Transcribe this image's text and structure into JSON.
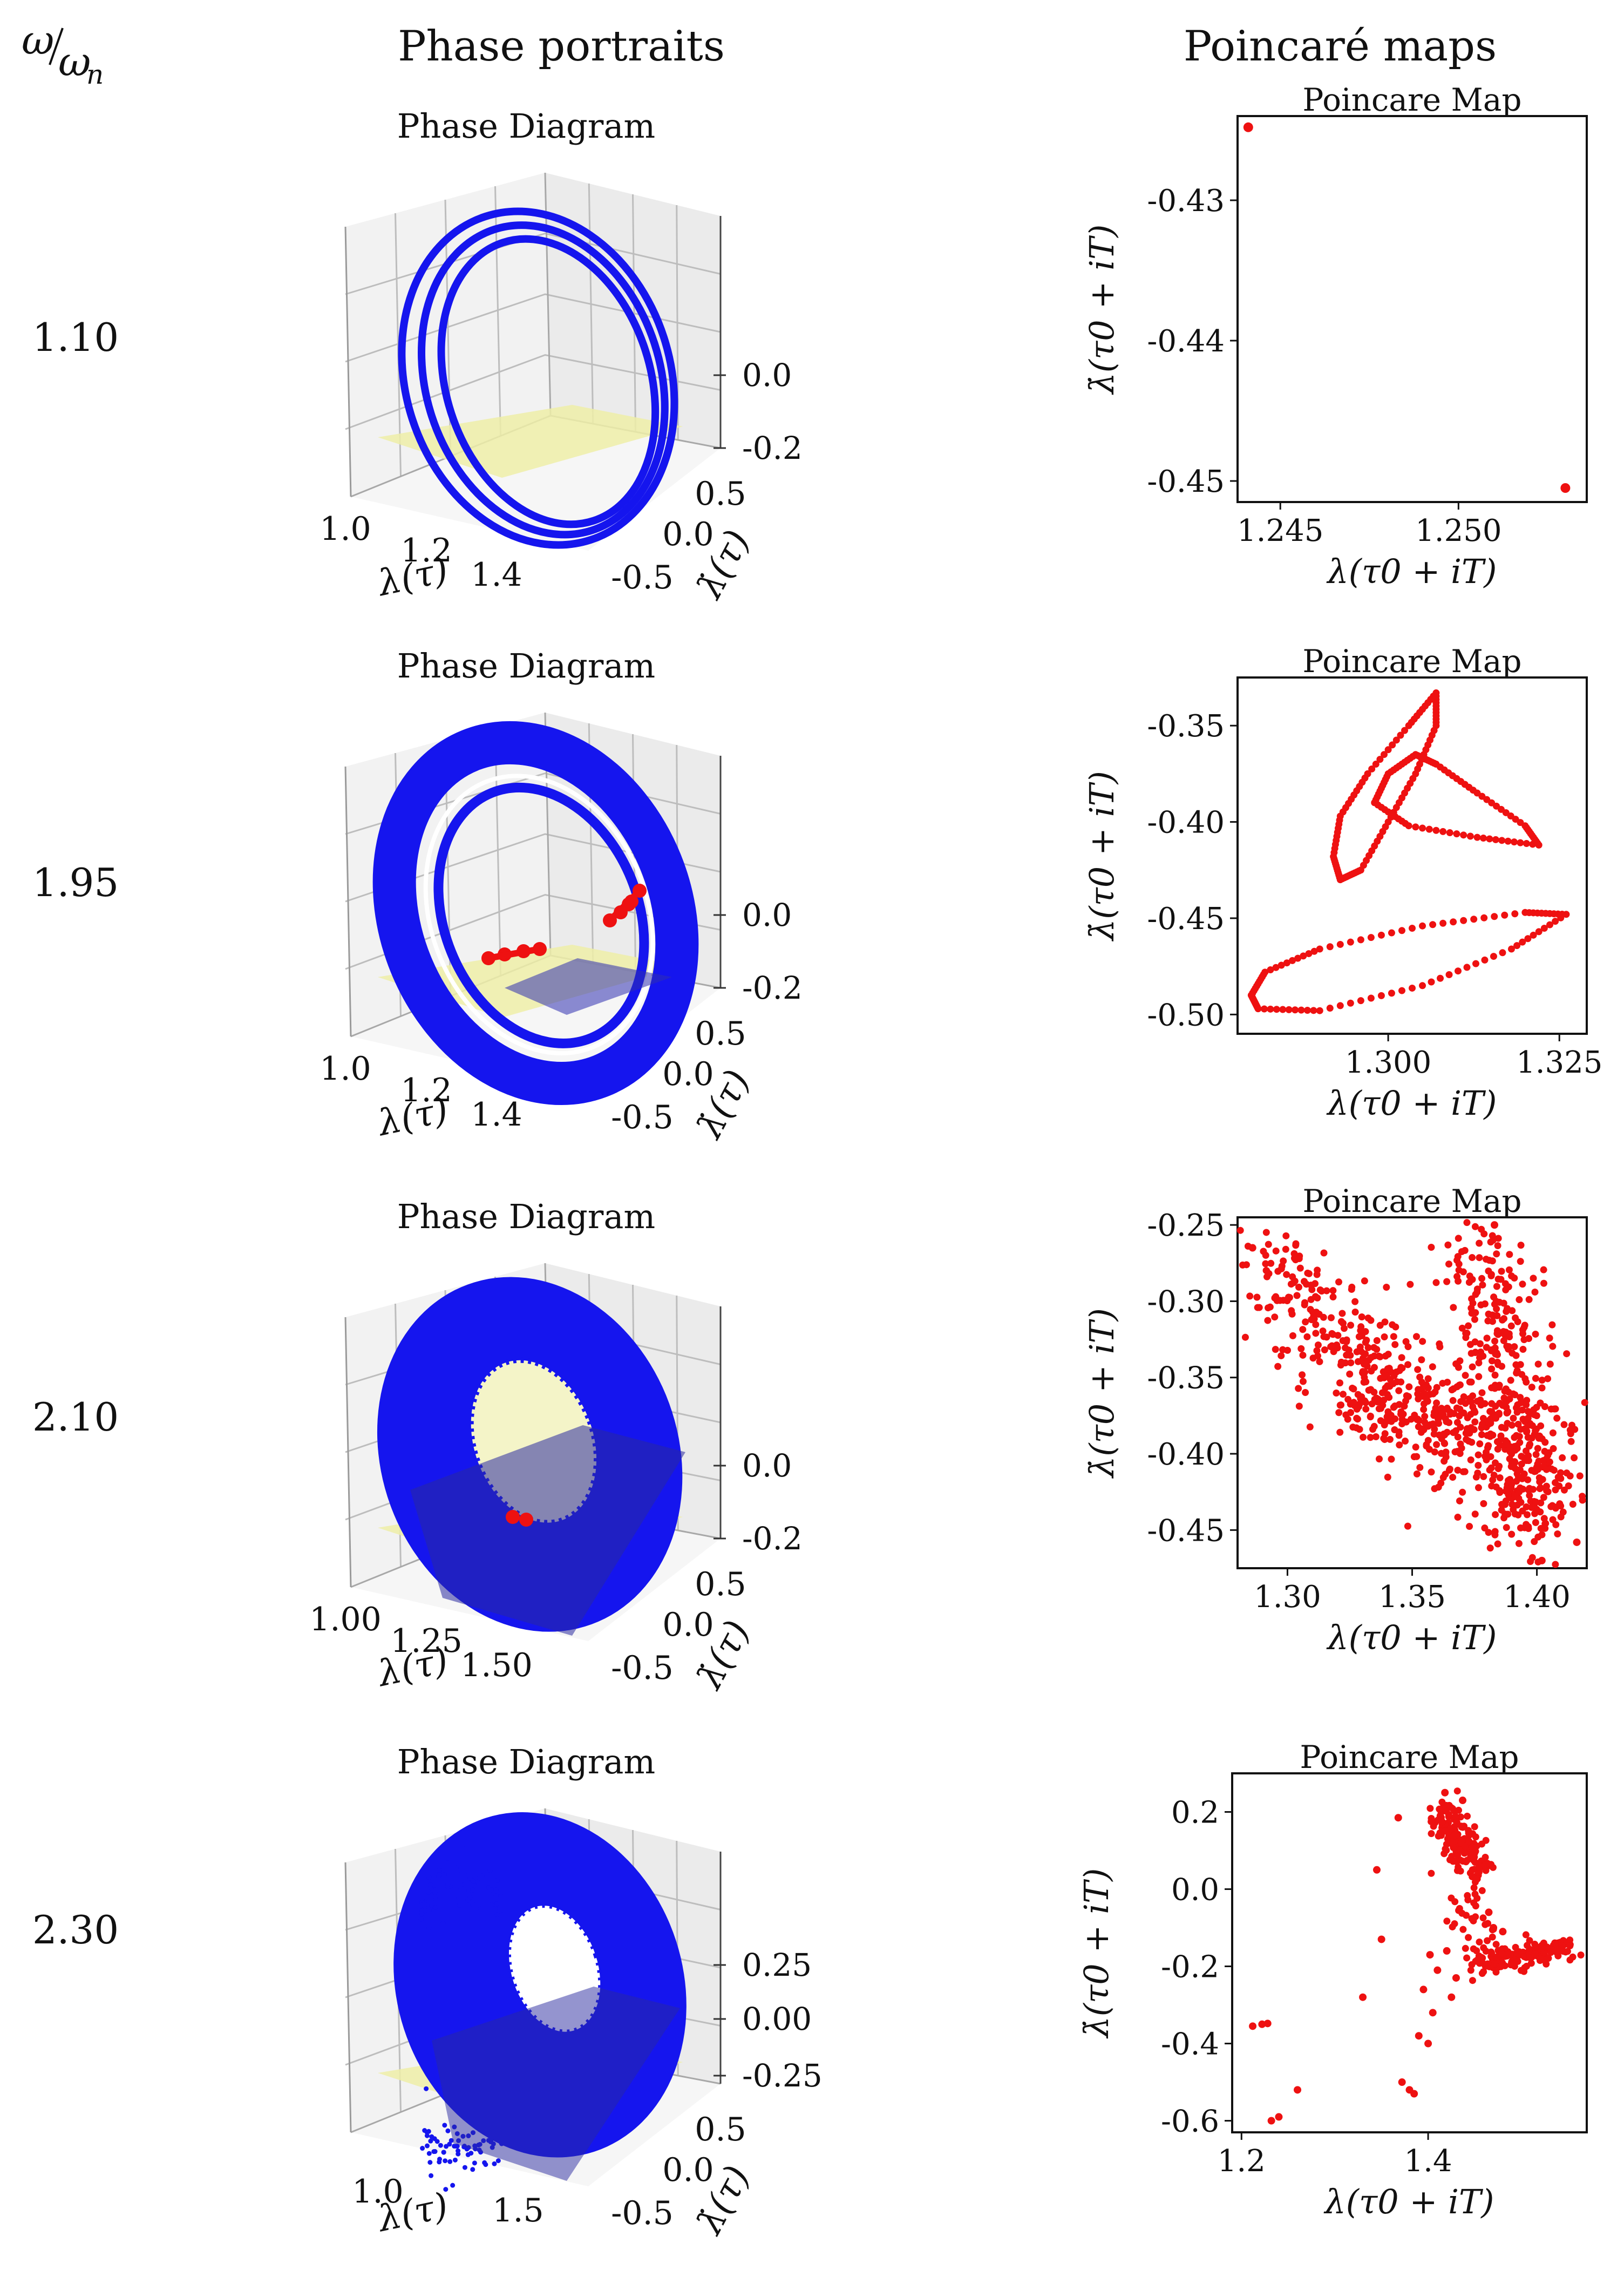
{
  "header": {
    "ratio_label": "ω/ωn",
    "ratio_num": "ω",
    "ratio_den": "ω",
    "ratio_den_sub": "n",
    "col_phase": "Phase portraits",
    "col_poincare": "Poincaré maps"
  },
  "colors": {
    "trajectory": "#1515ee",
    "poincare": "#ee1111",
    "plane": "#efefa8",
    "axis": "#111111",
    "grid": "#bdbdbd",
    "pane": "#f2f2f2"
  },
  "phase_axis_labels": {
    "x": "λ(τ)",
    "y": "λ̇(τ)"
  },
  "chart_data": [
    {
      "type": "3d-trajectory",
      "omega_ratio": "1.10",
      "title": "Phase Diagram",
      "xlabel": "λ(τ)",
      "ylabel": "λ̇(τ)",
      "x_ticks": [
        "1.0",
        "1.2",
        "1.4"
      ],
      "y_ticks": [
        "0.0",
        "0.5",
        "-0.5"
      ],
      "z_ticks": [
        "0.0",
        "-0.2"
      ],
      "style": "rings",
      "ring_count": 3,
      "poincare_section_markers": false
    },
    {
      "type": "scatter",
      "omega_ratio": "1.10",
      "title": "Poincare Map",
      "xlabel": "λ(τ0 + iT)",
      "ylabel": "λ̇(τ0 + iT)",
      "xlim": [
        1.2438,
        1.2536
      ],
      "ylim": [
        -0.4515,
        -0.424
      ],
      "xticks": [
        1.245,
        1.25
      ],
      "xtick_labels": [
        "1.245",
        "1.250"
      ],
      "yticks": [
        -0.43,
        -0.44,
        -0.45
      ],
      "ytick_labels": [
        "-0.43",
        "-0.44",
        "-0.45"
      ],
      "points": [
        [
          1.2441,
          -0.4248
        ],
        [
          1.253,
          -0.4505
        ]
      ]
    },
    {
      "type": "3d-trajectory",
      "omega_ratio": "1.95",
      "title": "Phase Diagram",
      "xlabel": "λ(τ)",
      "ylabel": "λ̇(τ)",
      "x_ticks": [
        "1.0",
        "1.2",
        "1.4"
      ],
      "y_ticks": [
        "0.0",
        "0.5",
        "-0.5"
      ],
      "z_ticks": [
        "0.0",
        "-0.2"
      ],
      "style": "thick-ring",
      "poincare_section_markers": true
    },
    {
      "type": "scatter",
      "omega_ratio": "1.95",
      "title": "Poincare Map",
      "xlabel": "λ(τ0 + iT)",
      "ylabel": "λ̇(τ0 + iT)",
      "xlim": [
        1.278,
        1.329
      ],
      "ylim": [
        -0.51,
        -0.325
      ],
      "xticks": [
        1.3,
        1.325
      ],
      "xtick_labels": [
        "1.300",
        "1.325"
      ],
      "yticks": [
        -0.35,
        -0.4,
        -0.45,
        -0.5
      ],
      "ytick_labels": [
        "-0.35",
        "-0.40",
        "-0.45",
        "-0.50"
      ],
      "curves": [
        [
          [
            1.307,
            -0.333
          ],
          [
            1.303,
            -0.35
          ],
          [
            1.297,
            -0.375
          ],
          [
            1.293,
            -0.397
          ],
          [
            1.292,
            -0.418
          ],
          [
            1.293,
            -0.43
          ],
          [
            1.296,
            -0.425
          ],
          [
            1.3,
            -0.4
          ],
          [
            1.304,
            -0.375
          ],
          [
            1.307,
            -0.35
          ],
          [
            1.307,
            -0.333
          ]
        ],
        [
          [
            1.304,
            -0.365
          ],
          [
            1.3,
            -0.375
          ],
          [
            1.298,
            -0.39
          ],
          [
            1.303,
            -0.402
          ],
          [
            1.313,
            -0.408
          ],
          [
            1.322,
            -0.412
          ],
          [
            1.32,
            -0.402
          ],
          [
            1.313,
            -0.385
          ],
          [
            1.307,
            -0.37
          ],
          [
            1.304,
            -0.365
          ]
        ],
        [
          [
            1.28,
            -0.49
          ],
          [
            1.281,
            -0.497
          ],
          [
            1.29,
            -0.498
          ],
          [
            1.305,
            -0.485
          ],
          [
            1.318,
            -0.466
          ],
          [
            1.326,
            -0.448
          ],
          [
            1.32,
            -0.447
          ],
          [
            1.305,
            -0.454
          ],
          [
            1.29,
            -0.466
          ],
          [
            1.282,
            -0.478
          ],
          [
            1.28,
            -0.49
          ]
        ]
      ]
    },
    {
      "type": "3d-trajectory",
      "omega_ratio": "2.10",
      "title": "Phase Diagram",
      "xlabel": "λ(τ)",
      "ylabel": "λ̇(τ)",
      "x_ticks": [
        "1.00",
        "1.25",
        "1.50"
      ],
      "y_ticks": [
        "0.0",
        "0.5",
        "-0.5"
      ],
      "z_ticks": [
        "0.0",
        "-0.2"
      ],
      "style": "filled-torus",
      "poincare_section_markers": true
    },
    {
      "type": "scatter",
      "omega_ratio": "2.10",
      "title": "Poincare Map",
      "xlabel": "λ(τ0 + iT)",
      "ylabel": "λ̇(τ0 + iT)",
      "xlim": [
        1.28,
        1.42
      ],
      "ylim": [
        -0.475,
        -0.245
      ],
      "xticks": [
        1.3,
        1.35,
        1.4
      ],
      "xtick_labels": [
        "1.30",
        "1.35",
        "1.40"
      ],
      "yticks": [
        -0.25,
        -0.3,
        -0.35,
        -0.4,
        -0.45
      ],
      "ytick_labels": [
        "-0.25",
        "-0.30",
        "-0.35",
        "-0.40",
        "-0.45"
      ],
      "clusters": [
        {
          "count": 430,
          "from": [
            1.29,
            -0.275
          ],
          "to": [
            1.395,
            -0.44
          ],
          "spread": [
            0.01,
            0.018
          ]
        },
        {
          "count": 380,
          "from": [
            1.375,
            -0.26
          ],
          "to": [
            1.405,
            -0.45
          ],
          "spread": [
            0.008,
            0.02
          ]
        },
        {
          "count": 140,
          "from": [
            1.33,
            -0.36
          ],
          "to": [
            1.38,
            -0.38
          ],
          "spread": [
            0.018,
            0.012
          ]
        }
      ],
      "points": [
        [
          1.286,
          -0.265
        ],
        [
          1.416,
          -0.458
        ],
        [
          1.383,
          -0.25
        ],
        [
          1.402,
          -0.47
        ]
      ]
    },
    {
      "type": "3d-trajectory",
      "omega_ratio": "2.30",
      "title": "Phase Diagram",
      "xlabel": "λ(τ)",
      "ylabel": "λ̇(τ)",
      "x_ticks": [
        "1.0",
        "1.5"
      ],
      "y_ticks": [
        "0.0",
        "0.5",
        "-0.5"
      ],
      "z_ticks": [
        "0.25",
        "0.00",
        "-0.25"
      ],
      "style": "scattered-torus",
      "poincare_section_markers": false
    },
    {
      "type": "scatter",
      "omega_ratio": "2.30",
      "title": "Poincare Map",
      "xlabel": "λ(τ0 + iT)",
      "ylabel": "λ̇(τ0 + iT)",
      "xlim": [
        1.19,
        1.57
      ],
      "ylim": [
        -0.63,
        0.3
      ],
      "xticks": [
        1.2,
        1.4
      ],
      "xtick_labels": [
        "1.2",
        "1.4"
      ],
      "yticks": [
        0.2,
        0.0,
        -0.2,
        -0.4,
        -0.6
      ],
      "ytick_labels": [
        "0.2",
        "0.0",
        "-0.2",
        "-0.4",
        "-0.6"
      ],
      "clusters": [
        {
          "count": 160,
          "from": [
            1.415,
            0.2
          ],
          "to": [
            1.455,
            0.04
          ],
          "spread": [
            0.01,
            0.025
          ]
        },
        {
          "count": 140,
          "from": [
            1.455,
            -0.2
          ],
          "to": [
            1.555,
            -0.14
          ],
          "spread": [
            0.01,
            0.015
          ]
        },
        {
          "count": 40,
          "from": [
            1.44,
            0.0
          ],
          "to": [
            1.46,
            -0.18
          ],
          "spread": [
            0.012,
            0.03
          ]
        }
      ],
      "points": [
        [
          1.212,
          -0.355
        ],
        [
          1.222,
          -0.35
        ],
        [
          1.228,
          -0.348
        ],
        [
          1.232,
          -0.6
        ],
        [
          1.24,
          -0.59
        ],
        [
          1.26,
          -0.52
        ],
        [
          1.33,
          -0.28
        ],
        [
          1.345,
          0.05
        ],
        [
          1.35,
          -0.13
        ],
        [
          1.368,
          0.185
        ],
        [
          1.372,
          -0.5
        ],
        [
          1.38,
          -0.52
        ],
        [
          1.385,
          -0.53
        ],
        [
          1.39,
          -0.38
        ],
        [
          1.395,
          -0.26
        ],
        [
          1.4,
          -0.4
        ],
        [
          1.405,
          -0.32
        ],
        [
          1.402,
          -0.17
        ],
        [
          1.41,
          -0.21
        ],
        [
          1.42,
          -0.16
        ],
        [
          1.425,
          -0.28
        ],
        [
          1.43,
          -0.23
        ],
        [
          1.437,
          0.23
        ],
        [
          1.418,
          0.25
        ],
        [
          1.465,
          -0.06
        ],
        [
          1.47,
          -0.1
        ],
        [
          1.48,
          -0.11
        ]
      ]
    }
  ]
}
